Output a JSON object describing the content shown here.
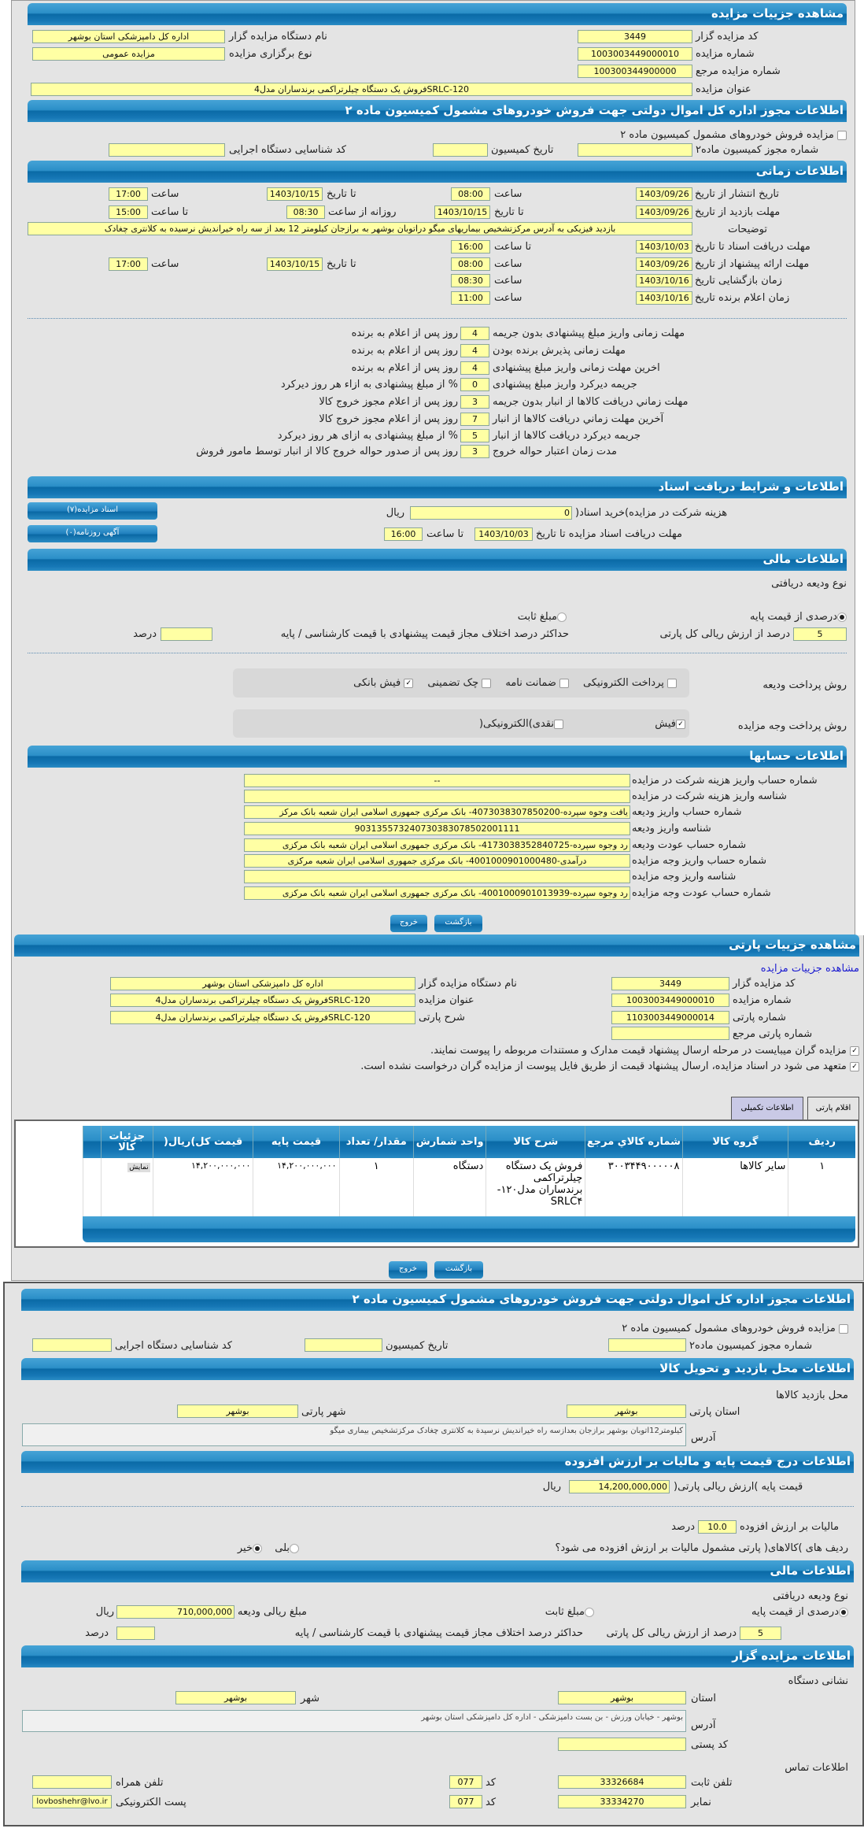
{
  "colors": {
    "header": "#1677b6",
    "field": "#ffffa4",
    "panel": "#e4e4e4",
    "link": "#1a1ad0"
  },
  "auction": {
    "title": "مشاهده جزییات مزایده",
    "code_label": "کد مزایده گزار",
    "code": "3449",
    "org_label": "نام دستگاه مزایده گزار",
    "org": "اداره کل دامپزشکی استان بوشهر",
    "number_label": "شماره مزایده",
    "number": "1003003449000010",
    "type_label": "نوع برگزاری مزایده",
    "type": "مزایده عمومی",
    "ref_label": "شماره مزایده مرجع",
    "ref": "100300344900000",
    "subject_label": "عنوان مزایده",
    "subject": "SRLC-120فروش یک دستگاه چیلرتراکمی برندساران مدل4"
  },
  "permit": {
    "title": "اطلاعات مجوز اداره کل اموال دولتی جهت فروش خودروهای مشمول کمیسیون ماده ۲",
    "checkbox_label": "مزایده فروش خودروهای مشمول کمیسیون ماده ۲",
    "permit_no_label": "شماره مجوز کمیسیون ماده۲",
    "date_label": "تاریخ کمیسیون",
    "exec_code_label": "کد شناسایی دستگاه اجرایی"
  },
  "timing": {
    "title": "اطلاعات زمانی",
    "publish_label": "تاریخ انتشار  از تاریخ",
    "publish_from": "1403/09/26",
    "time_label": "ساعت",
    "publish_from_time": "08:00",
    "to_date_label": "تا تاریخ",
    "publish_to": "1403/10/15",
    "publish_to_time": "17:00",
    "visit_label": "مهلت بازدید  از تاریخ",
    "visit_from": "1403/09/26",
    "visit_to": "1403/10/15",
    "daily_from_label": "روزانه از ساعت",
    "daily_from": "08:30",
    "to_time_label": "تا ساعت",
    "daily_to": "15:00",
    "desc_label": "توضیحات",
    "desc": "بازدید فیزیکی به آدرس مرکزتشخیص بیماریهای میگو دراتوبان بوشهر به برازجان کیلومتر 12 بعد از سه راه خیراندیش نرسیده به کلانتری چغادک",
    "docs_label": "مهلت دریافت اسناد  تا تاریخ",
    "docs_to": "1403/10/03",
    "docs_time": "16:00",
    "offer_label": "مهلت ارائه پیشنهاد  از تاریخ",
    "offer_from": "1403/09/26",
    "offer_from_time": "08:00",
    "offer_to": "1403/10/15",
    "offer_to_time": "17:00",
    "opening_label": "زمان بازگشایی    تاریخ",
    "opening_date": "1403/10/16",
    "opening_time": "08:30",
    "winner_label": "زمان اعلام برنده    تاریخ",
    "winner_date": "1403/10/16",
    "winner_time": "11:00"
  },
  "deadlines": [
    {
      "label": "مهلت زمانی واریز مبلغ پیشنهادی بدون جریمه",
      "value": "4",
      "suffix": "روز پس از اعلام به برنده"
    },
    {
      "label": "مهلت زمانی پذیرش برنده بودن",
      "value": "4",
      "suffix": "روز پس از اعلام به برنده"
    },
    {
      "label": "اخرین مهلت زمانی واریز مبلغ پیشنهادی",
      "value": "4",
      "suffix": "روز پس از اعلام به برنده"
    },
    {
      "label": "جریمه دیرکرد واریز مبلغ پیشنهادی",
      "value": "0",
      "suffix": "% از مبلغ پیشنهادی به ازاء هر روز دیرکرد"
    },
    {
      "label": "مهلت زماني دريافت کالاها از انبار بدون جريمه",
      "value": "3",
      "suffix": "روز پس از اعلام مجوز خروج کالا"
    },
    {
      "label": "آخرین مهلت زماني دريافت کالاها از انبار",
      "value": "7",
      "suffix": "روز پس از اعلام مجوز خروج کالا"
    },
    {
      "label": "جریمه دیرکرد دریافت کالاها از انبار",
      "value": "5",
      "suffix": "% از مبلغ پیشنهادی به ازای هر روز دیرکرد"
    },
    {
      "label": "مدت زمان اعتبار حواله خروج",
      "value": "3",
      "suffix": "روز پس از صدور حواله خروج کالا از انبار توسط مامور فروش"
    }
  ],
  "documents": {
    "title": "اطلاعات و شرایط دریافت اسناد",
    "fee_label": "هزینه شرکت در مزایده)خرید اسناد(",
    "fee": "0",
    "rial": "ریال",
    "deadline_label": "مهلت دریافت اسناد مزایده تا تاریخ",
    "deadline_date": "1403/10/03",
    "to_time_label": "تا ساعت",
    "deadline_time": "16:00",
    "docs_button": "اسناد مزایده(۷)",
    "ads_button": "آگهی روزنامه(۰)"
  },
  "finance": {
    "title": "اطلاعات مالی",
    "deposit_type_label": "نوع ودیعه دریافتی",
    "percent_option": "درصدی از قیمت پایه",
    "fixed_option": "مبلغ ثابت",
    "selected": "percent",
    "percent_value": "5",
    "percent_label": "درصد از ارزش ریالی کل پارتی",
    "max_diff_label": "حداکثر درصد اختلاف مجاز قیمت پیشنهادی با قیمت کارشناسی / پایه",
    "max_diff": "",
    "percent_unit": "درصد",
    "deposit_method_label": "روش پرداخت ودیعه",
    "deposit_methods": [
      {
        "label": "پرداخت الکترونیکی",
        "checked": false
      },
      {
        "label": "ضمانت نامه",
        "checked": false
      },
      {
        "label": "چک تضمینی",
        "checked": false
      },
      {
        "label": "فیش بانکی",
        "checked": true
      }
    ],
    "payment_method_label": "روش پرداخت وجه مزایده",
    "payment_methods": [
      {
        "label": "فیش",
        "checked": true
      },
      {
        "label": "نقدی)الکترونیکی(",
        "checked": false
      }
    ]
  },
  "accounts": {
    "title": "اطلاعات حسابها",
    "rows": [
      {
        "label": "شماره حساب واریز هزینه شرکت در مزایده",
        "value": "--"
      },
      {
        "label": "شناسه واریز هزینه شرکت در مزایده",
        "value": ""
      },
      {
        "label": "شماره حساب واریز ودیعه",
        "value": "یافت وجوه سپرده-4073038307850200- بانک مرکزی جمهوری اسلامی ایران شعبه بانک مرکز"
      },
      {
        "label": "شناسه واریز ودیعه",
        "value": "903135573240730383078502001111"
      },
      {
        "label": "شماره حساب عودت ودیعه",
        "value": "رد وجوه سپرده-4173038352840725- بانک مرکزی جمهوری اسلامی ایران شعبه بانک مرکزی"
      },
      {
        "label": "شماره حساب واریز وجه مزایده",
        "value": "درآمدی-4001000901000480- بانک مرکزی جمهوری اسلامی ایران شعبه مرکزی"
      },
      {
        "label": "شناسه واریز وجه مزایده",
        "value": ""
      },
      {
        "label": "شماره حساب عودت وجه مزایده",
        "value": "رد وجوه سپرده-4001000901013939- بانک مرکزی جمهوری اسلامی ایران شعبه بانک مرکزی"
      }
    ]
  },
  "buttons": {
    "back": "بازگشت",
    "exit": "خروج"
  },
  "lot": {
    "title": "مشاهده جزییات پارتی",
    "view_auction_link": "مشاهده جزییات مزایده",
    "lot_number_label": "شماره پارتی",
    "lot_number": "1103003449000014",
    "lot_desc_label": "شرح پارتی",
    "lot_desc": "SRLC-120فروش یک دستگاه چیلرتراکمی برندساران مدل4",
    "lot_ref_label": "شماره پارتی مرجع",
    "lot_ref": "",
    "check1": "مزایده گران میبایست در مرحله ارسال پیشنهاد قیمت مدارک و مستندات مربوطه را پیوست نمایند.",
    "check2": "متعهد می شود در اسناد مزایده، ارسال پیشنهاد قیمت از طریق فایل پیوست از مزایده گران درخواست نشده است.",
    "tabs": [
      "اقلام پارتی",
      "اطلاعات تکمیلی"
    ],
    "table": {
      "headers": [
        "ردیف",
        "گروه کالا",
        "شماره کالاي مرجع",
        "شرح کالا",
        "واحد شمارش",
        "مقدار/ تعداد",
        "قیمت پایه",
        "قیمت کل)ریال(",
        "جزئیات کالا"
      ],
      "rows": [
        [
          "۱",
          "سایر کالاها",
          "۳۰۰۳۴۴۹۰۰۰۰۰۸",
          "فروش یک دستگاه چیلرتراکمی برندساران مدل۱۲۰-SRLC۴",
          "دستگاه",
          "۱",
          "۱۴,۲۰۰,۰۰۰,۰۰۰",
          "۱۴,۲۰۰,۰۰۰,۰۰۰",
          "نمایش"
        ]
      ]
    }
  },
  "location": {
    "title": "اطلاعات محل بازدید و تحویل کالا",
    "visit_place_label": "محل بازدید کالاها",
    "province_label": "استان پارتی",
    "province": "بوشهر",
    "city_label": "شهر پارتی",
    "city": "بوشهر",
    "address_label": "آدرس",
    "address": "کیلومتر12اتوبان بوشهر برازجان بعدازسه راه خیراندیش نرسیدة به کلانتری چغادک مرکزتشخیص بیماری میگو"
  },
  "pricing": {
    "title": "اطلاعات درج قیمت پایه و مالیات بر ارزش افزوده",
    "base_label": "قیمت پایه )ارزش ریالی پارتی(",
    "base": "14,200,000,000",
    "rial": "ریال",
    "vat_label": "مالیات بر ارزش افزوده",
    "vat": "10.0",
    "percent": "درصد",
    "vat_question": "ردیف های )کالاهای( پارتی مشمول مالیات بر ارزش افزوده می شود؟",
    "yes": "بلی",
    "no": "خیر",
    "vat_selected": "no"
  },
  "finance2": {
    "deposit_amount_label": "مبلغ ریالی ودیعه",
    "deposit_amount": "710,000,000"
  },
  "auctioneer": {
    "title": "اطلاعات مزایده گزار",
    "address_section": "نشانی دستگاه",
    "province_label": "استان",
    "province": "بوشهر",
    "city_label": "شهر",
    "city": "بوشهر",
    "address_label": "آدرس",
    "address": "بوشهر - خیابان ورزش - بن بست دامپزشکی - اداره کل دامپزشکی استان بوشهر",
    "postal_label": "کد پستی",
    "postal": "",
    "contact_section": "اطلاعات تماس",
    "phone_label": "تلفن ثابت",
    "phone": "33326684",
    "code_label": "کد",
    "phone_code": "077",
    "mobile_label": "تلفن همراه",
    "mobile": "",
    "fax_label": "نمابر",
    "fax": "33334270",
    "fax_code": "077",
    "email_label": "پست الکترونیکی",
    "email": "lovboshehr@lvo.ir"
  }
}
